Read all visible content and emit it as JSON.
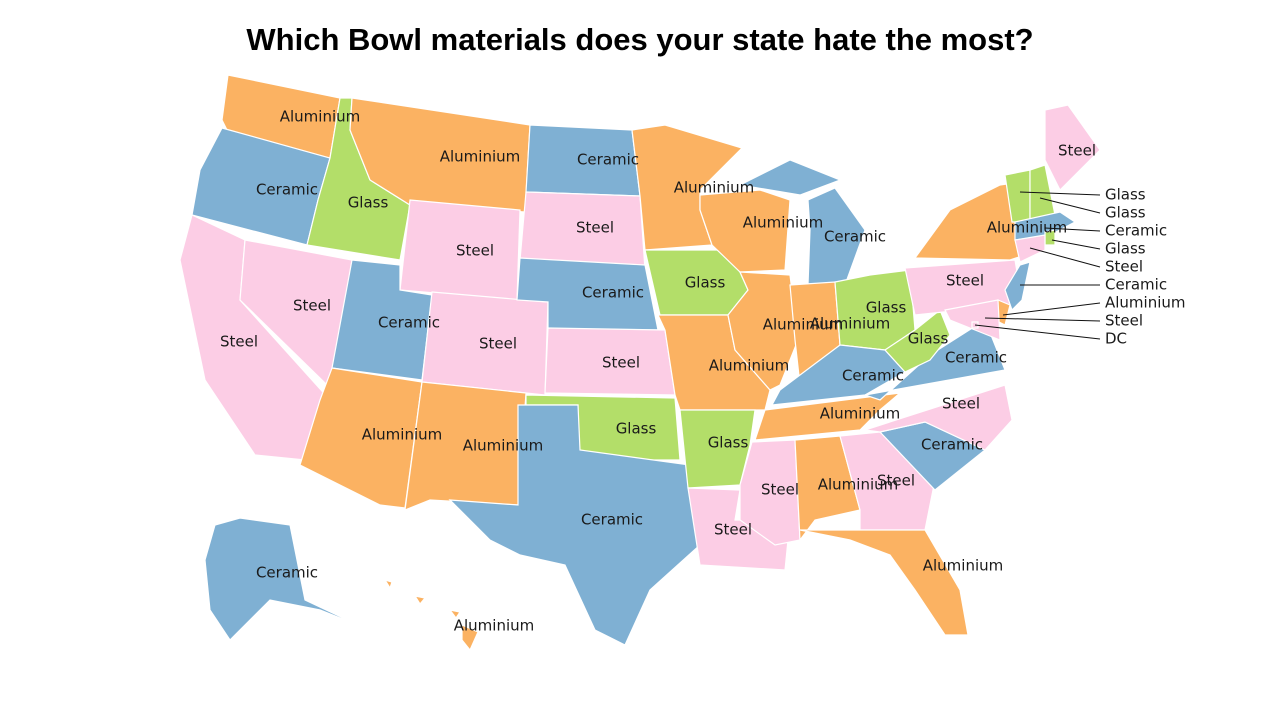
{
  "title": "Which Bowl materials does your state hate the most?",
  "states": [
    {
      "label": "Aluminium",
      "color": "#fbb262"
    },
    {
      "label": "Ceramic",
      "color": "#7fb0d3"
    },
    {
      "label": "Steel",
      "color": "#fccde5"
    },
    {
      "label": "Glass",
      "color": "#b3de69"
    },
    {
      "label": "Steel",
      "color": "#fccde5"
    },
    {
      "label": "Aluminium",
      "color": "#fbb262"
    },
    {
      "label": "Steel",
      "color": "#fccde5"
    },
    {
      "label": "Ceramic",
      "color": "#7fb0d3"
    },
    {
      "label": "Aluminium",
      "color": "#fbb262"
    },
    {
      "label": "Steel",
      "color": "#fccde5"
    },
    {
      "label": "Aluminium",
      "color": "#fbb262"
    },
    {
      "label": "Ceramic",
      "color": "#7fb0d3"
    },
    {
      "label": "Steel",
      "color": "#fccde5"
    },
    {
      "label": "Ceramic",
      "color": "#7fb0d3"
    },
    {
      "label": "Steel",
      "color": "#fccde5"
    },
    {
      "label": "Glass",
      "color": "#b3de69"
    },
    {
      "label": "Ceramic",
      "color": "#7fb0d3"
    },
    {
      "label": "Aluminium",
      "color": "#fbb262"
    },
    {
      "label": "Glass",
      "color": "#b3de69"
    },
    {
      "label": "Aluminium",
      "color": "#fbb262"
    },
    {
      "label": "Glass",
      "color": "#b3de69"
    },
    {
      "label": "Steel",
      "color": "#fccde5"
    },
    {
      "label": "Aluminium",
      "color": "#fbb262"
    },
    {
      "label": "Aluminium",
      "color": "#fbb262"
    },
    {
      "label": "Ceramic",
      "color": "#7fb0d3"
    },
    {
      "label": "Aluminium",
      "color": "#fbb262"
    },
    {
      "label": "Glass",
      "color": "#b3de69"
    },
    {
      "label": "Ceramic",
      "color": "#7fb0d3"
    },
    {
      "label": "Aluminium",
      "color": "#fbb262"
    },
    {
      "label": "Steel",
      "color": "#fccde5"
    },
    {
      "label": "Aluminium",
      "color": "#fbb262"
    },
    {
      "label": "Steel",
      "color": "#fccde5"
    },
    {
      "label": "Aluminium",
      "color": "#fbb262"
    },
    {
      "label": "Ceramic",
      "color": "#7fb0d3"
    },
    {
      "label": "Steel",
      "color": "#fccde5"
    },
    {
      "label": "Ceramic",
      "color": "#7fb0d3"
    },
    {
      "label": "Glass",
      "color": "#b3de69"
    },
    {
      "label": "Steel",
      "color": "#fccde5"
    },
    {
      "label": "Aluminium",
      "color": "#fbb262"
    },
    {
      "label": "Steel",
      "color": "#fccde5"
    },
    {
      "label": "Glass",
      "color": "#b3de69"
    },
    {
      "label": "Glass",
      "color": "#b3de69"
    },
    {
      "label": "Ceramic",
      "color": "#7fb0d3"
    },
    {
      "label": "Glass",
      "color": "#b3de69"
    },
    {
      "label": "Steel",
      "color": "#fccde5"
    },
    {
      "label": "Ceramic",
      "color": "#7fb0d3"
    },
    {
      "label": "Aluminium",
      "color": "#fbb262"
    },
    {
      "label": "Steel",
      "color": "#fccde5"
    },
    {
      "label": "DC",
      "color": "#fccde5"
    },
    {
      "label": "Ceramic",
      "color": "#7fb0d3"
    },
    {
      "label": "Aluminium",
      "color": "#fbb262"
    }
  ]
}
